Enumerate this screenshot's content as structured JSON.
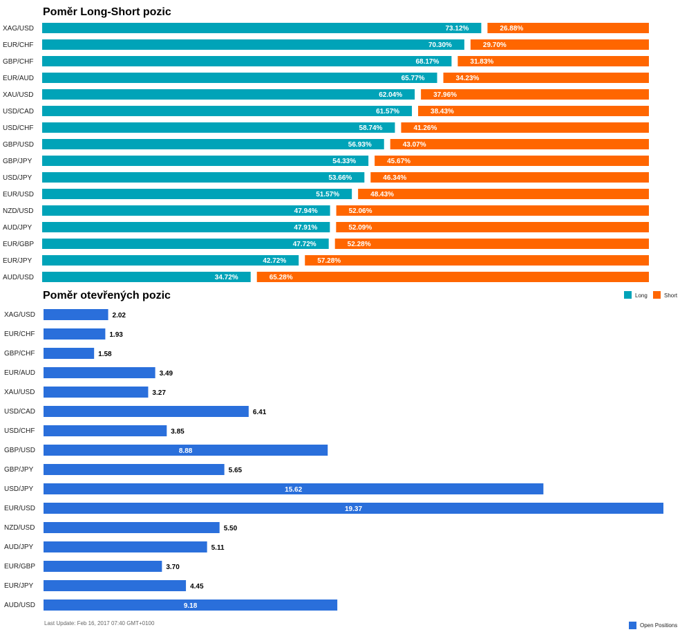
{
  "colors": {
    "long": "#00a3b8",
    "short": "#ff6600",
    "open": "#2a6fdb"
  },
  "legend": {
    "long": "Long",
    "short": "Short",
    "open": "Open Positions"
  },
  "footer": {
    "last_update": "Last Update: Feb 16, 2017 07:40 GMT+0100"
  },
  "chart_data": [
    {
      "type": "bar",
      "orientation": "horizontal",
      "stacked": true,
      "title": "Poměr Long-Short pozic",
      "categories": [
        "XAG/USD",
        "EUR/CHF",
        "GBP/CHF",
        "EUR/AUD",
        "XAU/USD",
        "USD/CAD",
        "USD/CHF",
        "GBP/USD",
        "GBP/JPY",
        "USD/JPY",
        "EUR/USD",
        "NZD/USD",
        "AUD/JPY",
        "EUR/GBP",
        "EUR/JPY",
        "AUD/USD"
      ],
      "series": [
        {
          "name": "Long",
          "values": [
            73.12,
            70.3,
            68.17,
            65.77,
            62.04,
            61.57,
            58.74,
            56.93,
            54.33,
            53.66,
            51.57,
            47.94,
            47.91,
            47.72,
            42.72,
            34.72
          ]
        },
        {
          "name": "Short",
          "values": [
            26.88,
            29.7,
            31.83,
            34.23,
            37.96,
            38.43,
            41.26,
            43.07,
            45.67,
            46.34,
            48.43,
            52.06,
            52.09,
            52.28,
            57.28,
            65.28
          ]
        }
      ],
      "labels": {
        "long": [
          "73.12%",
          "70.30%",
          "68.17%",
          "65.77%",
          "62.04%",
          "61.57%",
          "58.74%",
          "56.93%",
          "54.33%",
          "53.66%",
          "51.57%",
          "47.94%",
          "47.91%",
          "47.72%",
          "42.72%",
          "34.72%"
        ],
        "short": [
          "26.88%",
          "29.70%",
          "31.83%",
          "34.23%",
          "37.96%",
          "38.43%",
          "41.26%",
          "43.07%",
          "45.67%",
          "46.34%",
          "48.43%",
          "52.06%",
          "52.09%",
          "52.28%",
          "57.28%",
          "65.28%"
        ]
      },
      "xlim": [
        0,
        100
      ],
      "legend_position": "bottom-right"
    },
    {
      "type": "bar",
      "orientation": "horizontal",
      "title": "Poměr otevřených pozic",
      "categories": [
        "XAG/USD",
        "EUR/CHF",
        "GBP/CHF",
        "EUR/AUD",
        "XAU/USD",
        "USD/CAD",
        "USD/CHF",
        "GBP/USD",
        "GBP/JPY",
        "USD/JPY",
        "EUR/USD",
        "NZD/USD",
        "AUD/JPY",
        "EUR/GBP",
        "EUR/JPY",
        "AUD/USD"
      ],
      "series": [
        {
          "name": "Open Positions",
          "values": [
            2.02,
            1.93,
            1.58,
            3.49,
            3.27,
            6.41,
            3.85,
            8.88,
            5.65,
            15.62,
            19.37,
            5.5,
            5.11,
            3.7,
            4.45,
            9.18
          ]
        }
      ],
      "labels": [
        "2.02",
        "1.93",
        "1.58",
        "3.49",
        "3.27",
        "6.41",
        "3.85",
        "8.88",
        "5.65",
        "15.62",
        "19.37",
        "5.50",
        "5.11",
        "3.70",
        "4.45",
        "9.18"
      ],
      "xlim": [
        0,
        19.37
      ],
      "legend_position": "bottom-right"
    }
  ]
}
